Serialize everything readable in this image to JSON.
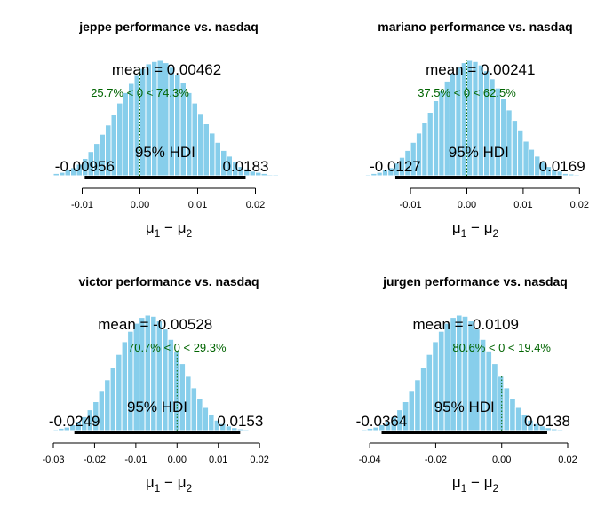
{
  "colors": {
    "bar_fill": "#87ceeb",
    "bar_stroke": "#ffffff",
    "text": "#000000",
    "comparison_text": "#006400",
    "hdi_bar": "#000000"
  },
  "chart_data": [
    {
      "type": "bar",
      "title": "jeppe performance vs. nasdaq",
      "xlabel": "μ1 − μ2",
      "xlabel_main": "μ",
      "xlabel_sub1": "1",
      "xlabel_minus": " − ",
      "xlabel_sub2": "2",
      "xlim": [
        -0.015,
        0.025
      ],
      "xticks": [
        -0.01,
        0.0,
        0.01,
        0.02
      ],
      "xtick_labels": [
        "-0.01",
        "0.00",
        "0.01",
        "0.02"
      ],
      "bin_width": 0.001,
      "bin_start": -0.016,
      "densities": [
        0.01,
        0.02,
        0.03,
        0.05,
        0.07,
        0.1,
        0.15,
        0.21,
        0.28,
        0.36,
        0.44,
        0.53,
        0.63,
        0.72,
        0.8,
        0.87,
        0.93,
        0.97,
        0.99,
        1.0,
        0.98,
        0.94,
        0.88,
        0.81,
        0.72,
        0.63,
        0.54,
        0.45,
        0.37,
        0.29,
        0.22,
        0.17,
        0.12,
        0.08,
        0.06,
        0.04,
        0.03,
        0.02,
        0.01,
        0.01,
        0.005
      ],
      "mean_value": 0.00462,
      "mean_text": "mean = 0.00462",
      "comparison_value": 0,
      "comparison_text": "25.7% < 0 < 74.3%",
      "hdi_label": "95% HDI",
      "hdi_low": -0.00956,
      "hdi_high": 0.0183,
      "hdi_low_text": "-0.00956",
      "hdi_high_text": "0.0183"
    },
    {
      "type": "bar",
      "title": "mariano performance vs. nasdaq",
      "xlabel": "μ1 − μ2",
      "xlabel_main": "μ",
      "xlabel_sub1": "1",
      "xlabel_minus": " − ",
      "xlabel_sub2": "2",
      "xlim": [
        -0.019,
        0.022
      ],
      "xticks": [
        -0.01,
        0.0,
        0.01,
        0.02
      ],
      "xtick_labels": [
        "-0.01",
        "0.00",
        "0.01",
        "0.02"
      ],
      "bin_width": 0.001,
      "bin_start": -0.019,
      "densities": [
        0.005,
        0.01,
        0.02,
        0.03,
        0.05,
        0.07,
        0.11,
        0.16,
        0.22,
        0.29,
        0.37,
        0.46,
        0.55,
        0.65,
        0.74,
        0.82,
        0.89,
        0.94,
        0.98,
        1.0,
        0.99,
        0.96,
        0.91,
        0.84,
        0.76,
        0.67,
        0.57,
        0.48,
        0.39,
        0.3,
        0.23,
        0.17,
        0.12,
        0.08,
        0.05,
        0.04,
        0.02,
        0.015,
        0.01,
        0.005,
        0.003
      ],
      "mean_value": 0.00241,
      "mean_text": "mean = 0.00241",
      "comparison_value": 0,
      "comparison_text": "37.5% < 0 < 62.5%",
      "hdi_label": "95% HDI",
      "hdi_low": -0.0127,
      "hdi_high": 0.0169,
      "hdi_low_text": "-0.0127",
      "hdi_high_text": "0.0169"
    },
    {
      "type": "bar",
      "title": "victor performance vs. nasdaq",
      "xlabel": "μ1 − μ2",
      "xlabel_main": "μ",
      "xlabel_sub1": "1",
      "xlabel_minus": " − ",
      "xlabel_sub2": "2",
      "xlim": [
        -0.03,
        0.026
      ],
      "xticks": [
        -0.03,
        -0.02,
        -0.01,
        0.0,
        0.01,
        0.02
      ],
      "xtick_labels": [
        "-0.03",
        "-0.02",
        "-0.01",
        "0.00",
        "0.01",
        "0.02"
      ],
      "bin_width": 0.0014,
      "bin_start": -0.0302,
      "densities": [
        0.01,
        0.02,
        0.03,
        0.05,
        0.08,
        0.12,
        0.18,
        0.25,
        0.34,
        0.44,
        0.55,
        0.66,
        0.77,
        0.86,
        0.93,
        0.98,
        1.0,
        0.99,
        0.95,
        0.88,
        0.79,
        0.69,
        0.58,
        0.47,
        0.37,
        0.28,
        0.2,
        0.14,
        0.09,
        0.06,
        0.04,
        0.025,
        0.015,
        0.01,
        0.005,
        0.003,
        0.002,
        0.001,
        0.001,
        0.001
      ],
      "mean_value": -0.00528,
      "mean_text": "mean = -0.00528",
      "comparison_value": 0,
      "comparison_text": "70.7% < 0 < 29.3%",
      "hdi_label": "95% HDI",
      "hdi_low": -0.0249,
      "hdi_high": 0.0153,
      "hdi_low_text": "-0.0249",
      "hdi_high_text": "0.0153"
    },
    {
      "type": "bar",
      "title": "jurgen performance vs. nasdaq",
      "xlabel": "μ1 − μ2",
      "xlabel_main": "μ",
      "xlabel_sub1": "1",
      "xlabel_minus": " − ",
      "xlabel_sub2": "2",
      "xlim": [
        -0.043,
        0.027
      ],
      "xticks": [
        -0.04,
        -0.02,
        0.0,
        0.02
      ],
      "xtick_labels": [
        "-0.04",
        "-0.02",
        "0.00",
        "0.02"
      ],
      "bin_width": 0.0018,
      "bin_start": -0.0426,
      "densities": [
        0.01,
        0.02,
        0.03,
        0.05,
        0.08,
        0.12,
        0.18,
        0.25,
        0.34,
        0.44,
        0.55,
        0.66,
        0.77,
        0.86,
        0.93,
        0.98,
        1.0,
        0.99,
        0.95,
        0.88,
        0.79,
        0.69,
        0.58,
        0.47,
        0.37,
        0.28,
        0.2,
        0.14,
        0.09,
        0.06,
        0.04,
        0.025,
        0.015,
        0.01,
        0.005,
        0.003,
        0.002,
        0.001
      ],
      "mean_value": -0.0109,
      "mean_text": "mean = -0.0109",
      "comparison_value": 0,
      "comparison_text": "80.6% < 0 < 19.4%",
      "hdi_label": "95% HDI",
      "hdi_low": -0.0364,
      "hdi_high": 0.0138,
      "hdi_low_text": "-0.0364",
      "hdi_high_text": "0.0138"
    }
  ]
}
